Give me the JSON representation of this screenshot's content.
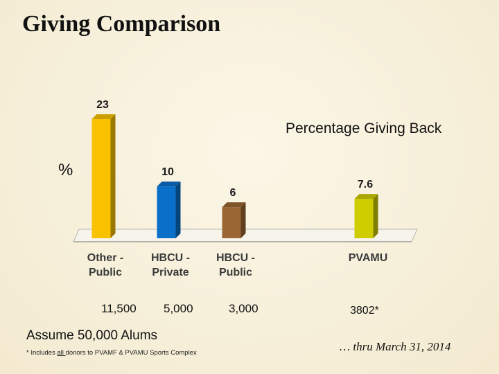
{
  "title": "Giving Comparison",
  "subtitle": "Percentage Giving Back",
  "y_unit": "%",
  "donor_counts": [
    "11,500",
    "5,000",
    "3,000",
    "3802*"
  ],
  "assumption": "Assume 50,000 Alums",
  "footnote": {
    "prefix": "* Includes ",
    "emphasis": "all ",
    "suffix": "donors to PVAMF & PVAMU Sports Complex"
  },
  "period_note": "… thru March 31, 2014",
  "colors": {
    "other_public": "#f9c200",
    "hbcu_private": "#0a6fc8",
    "hbcu_public": "#9a6634",
    "pvamu": "#cfcc00",
    "floor": "#f7f4ec"
  },
  "chart_data": {
    "type": "bar",
    "title": "Percentage Giving Back",
    "ylabel": "%",
    "categories": [
      [
        "Other -",
        "Public"
      ],
      [
        "HBCU -",
        "Private"
      ],
      [
        "HBCU -",
        "Public"
      ],
      [
        "PVAMU"
      ]
    ],
    "values": [
      23,
      10,
      6,
      7.6
    ],
    "value_labels": [
      "23",
      "10",
      "6",
      "7.6"
    ],
    "ylim": [
      0,
      23
    ]
  }
}
